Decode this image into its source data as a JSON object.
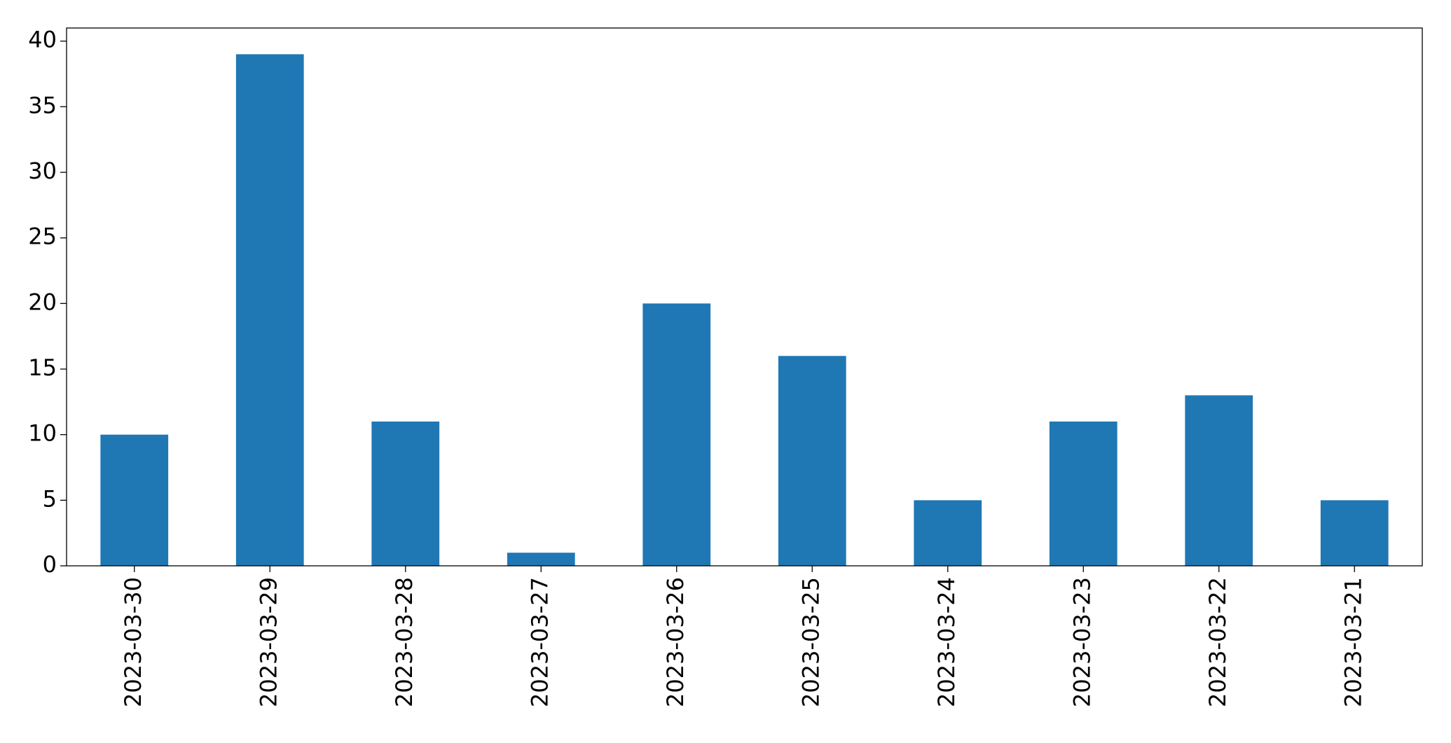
{
  "chart_data": {
    "type": "bar",
    "categories": [
      "2023-03-30",
      "2023-03-29",
      "2023-03-28",
      "2023-03-27",
      "2023-03-26",
      "2023-03-25",
      "2023-03-24",
      "2023-03-23",
      "2023-03-22",
      "2023-03-21"
    ],
    "values": [
      10,
      39,
      11,
      1,
      20,
      16,
      5,
      11,
      13,
      5
    ],
    "color": "#1f77b4",
    "ylim": [
      0,
      41
    ],
    "yticks": [
      0,
      5,
      10,
      15,
      20,
      25,
      30,
      35,
      40
    ],
    "grid": false
  }
}
